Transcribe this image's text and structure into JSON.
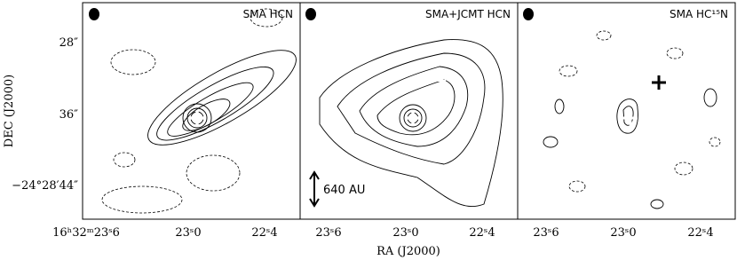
{
  "figure": {
    "panels": [
      {
        "title": "SMA HCN",
        "xticks": [
          "16ʰ32ᵐ23ˢ6",
          "23ˢ0",
          "22ˢ4"
        ]
      },
      {
        "title": "SMA+JCMT HCN",
        "xticks": [
          "23ˢ6",
          "23ˢ0",
          "22ˢ4"
        ],
        "scale_bar": "640 AU"
      },
      {
        "title": "SMA HC¹⁵N",
        "xticks": [
          "23ˢ6",
          "23ˢ0",
          "22ˢ4"
        ]
      }
    ],
    "yticks": [
      "28″",
      "36″",
      "−24°28′44″"
    ],
    "xlabel": "RA (J2000)",
    "ylabel": "DEC (J2000)"
  }
}
